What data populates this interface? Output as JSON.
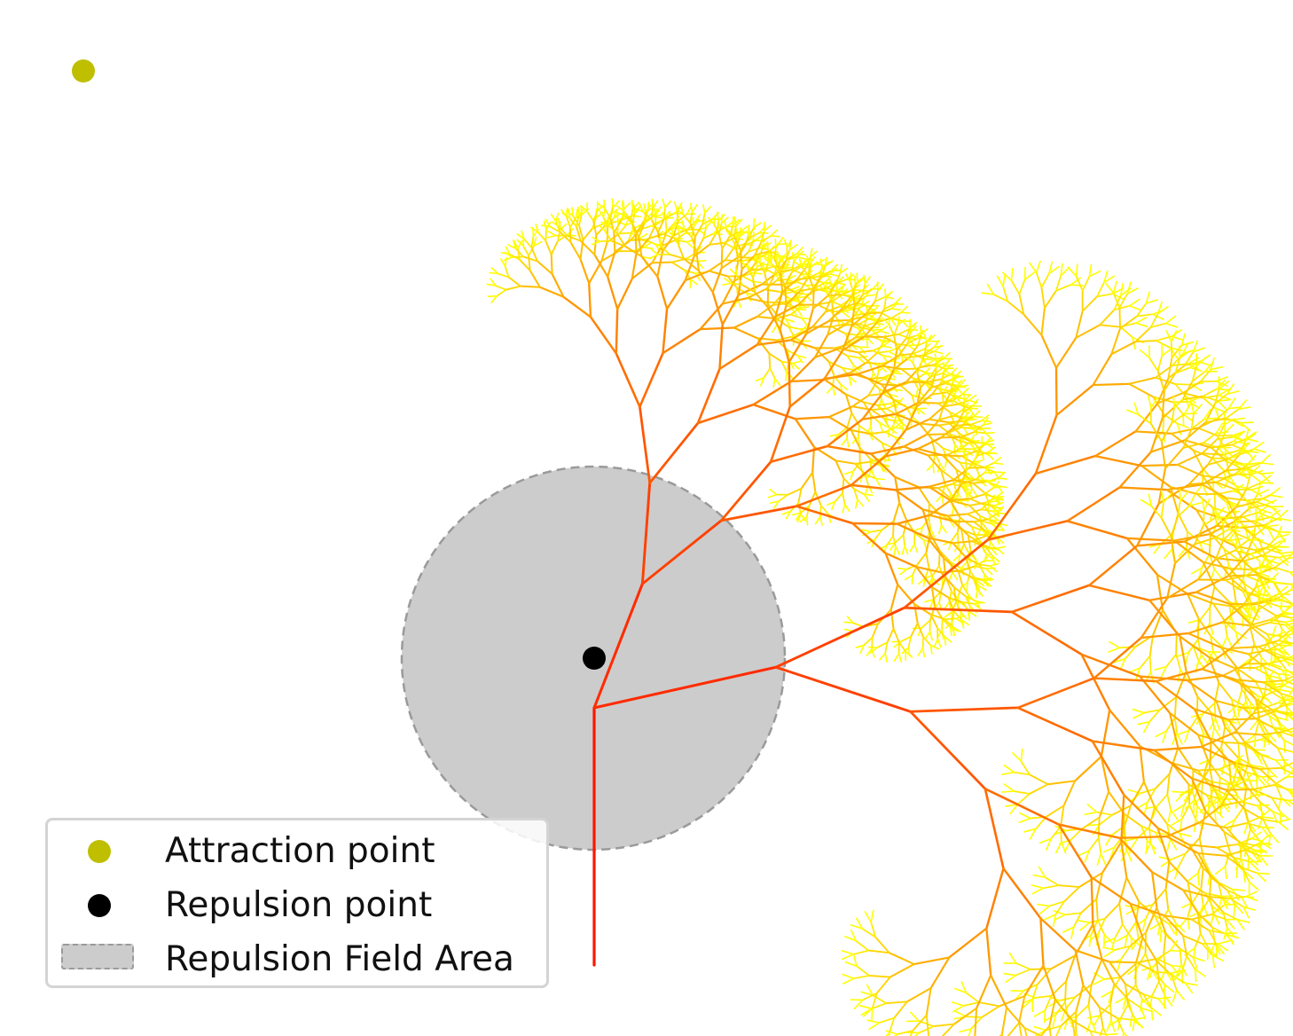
{
  "legend": {
    "items": [
      {
        "label": "Attraction point",
        "marker": "dot",
        "color": "#bfbf00"
      },
      {
        "label": "Repulsion point",
        "marker": "dot",
        "color": "#000000"
      },
      {
        "label": "Repulsion Field Area",
        "marker": "dashed-patch",
        "color": "#cccccc"
      }
    ]
  },
  "colors": {
    "attraction_point": "#bfbf00",
    "repulsion_point": "#000000",
    "repulsion_field": "#cccccc",
    "trunk": "#ff1500",
    "mid_branches": "#ff8c00",
    "tips": "#ffff00"
  },
  "tree": {
    "depth": 11
  }
}
